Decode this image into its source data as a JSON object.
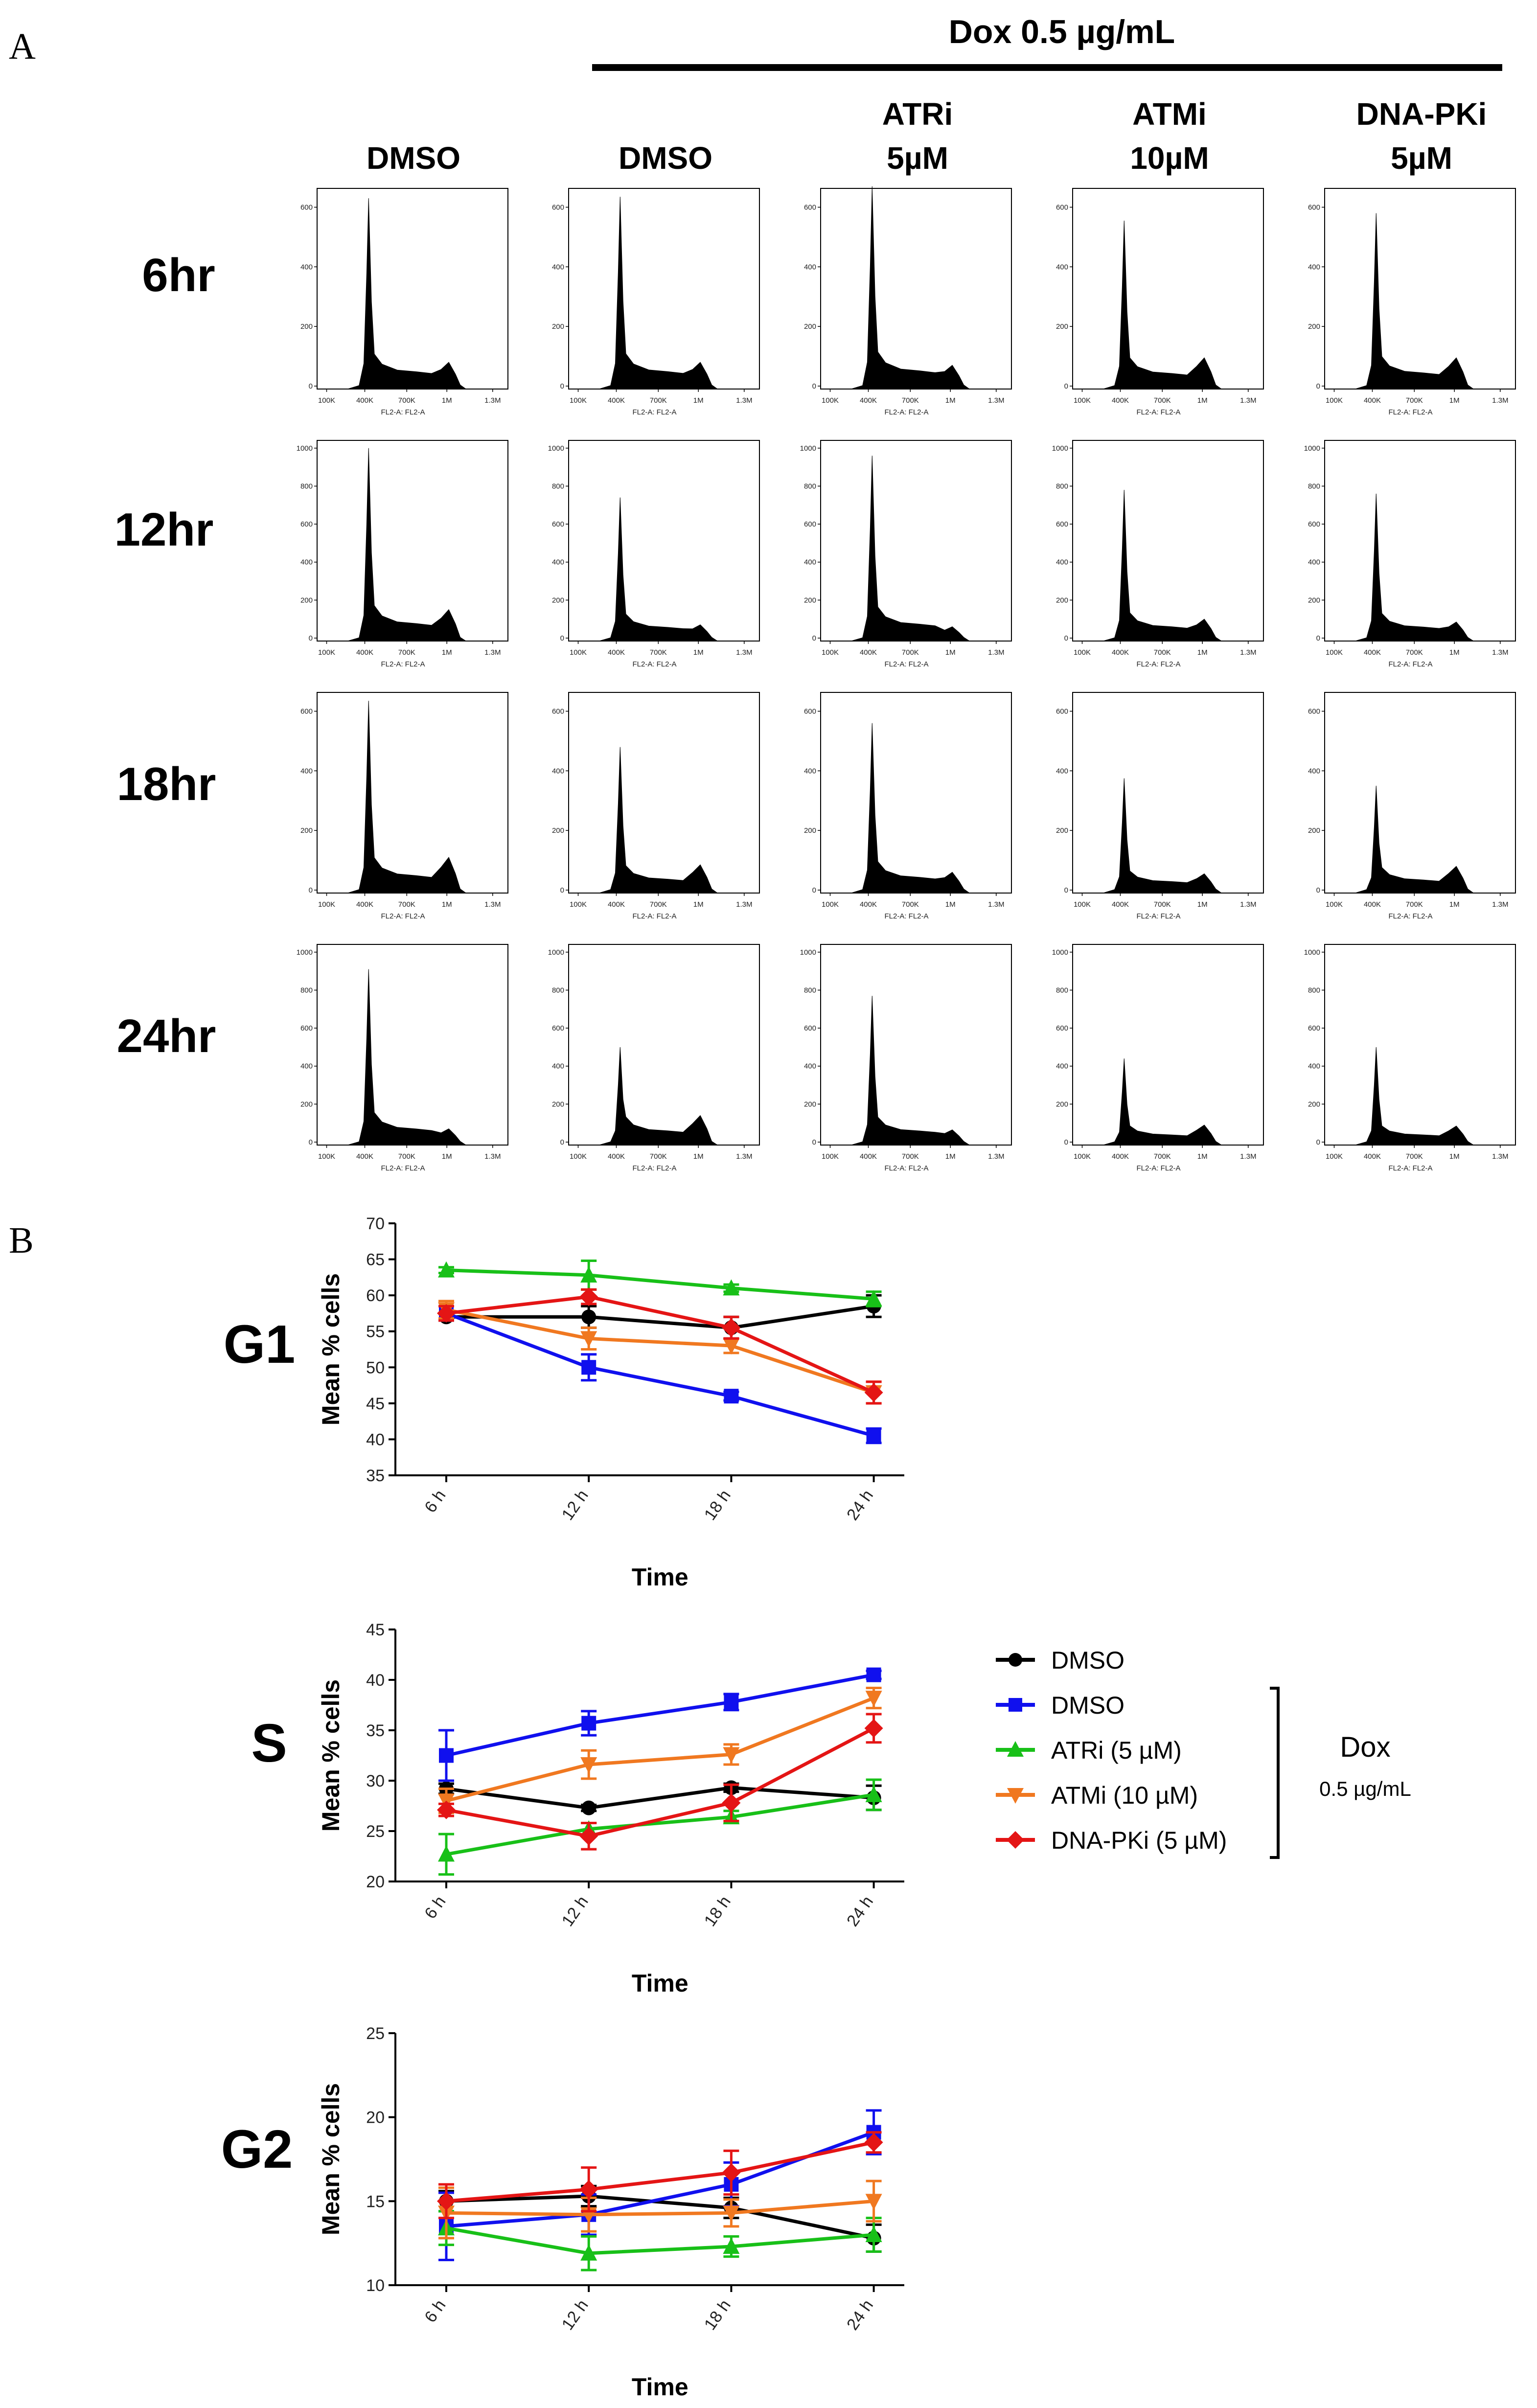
{
  "panel_labels": {
    "a": "A",
    "b": "B"
  },
  "treatment_header": "Dox 0.5 µg/mL",
  "conditions": [
    {
      "line1": "DMSO",
      "line2": ""
    },
    {
      "line1": "DMSO",
      "line2": ""
    },
    {
      "line1": "ATRi",
      "line2": "5µM"
    },
    {
      "line1": "ATMi",
      "line2": "10µM"
    },
    {
      "line1": "DNA-PKi",
      "line2": "5µM"
    }
  ],
  "timepoints": [
    "6hr",
    "12hr",
    "18hr",
    "24hr"
  ],
  "histogram": {
    "x_ticks": [
      "100K",
      "400K",
      "700K",
      "1M",
      "1.3M"
    ],
    "x_label": "FL2-A: FL2-A",
    "y_ticks_by_row": [
      [
        "0",
        "200",
        "400",
        "600"
      ],
      [
        "0",
        "200",
        "400",
        "600",
        "800",
        "1000"
      ],
      [
        "0",
        "200",
        "400",
        "600"
      ],
      [
        "0",
        "200",
        "400",
        "600",
        "800",
        "1000"
      ]
    ],
    "y_max_by_row": [
      650,
      1020,
      650,
      1020
    ],
    "g1_peak_heights": [
      [
        630,
        635,
        670,
        555,
        580
      ],
      [
        1000,
        740,
        960,
        780,
        760
      ],
      [
        635,
        480,
        560,
        375,
        350
      ],
      [
        910,
        500,
        770,
        440,
        500
      ]
    ],
    "g2_peak_heights": [
      [
        80,
        80,
        70,
        95,
        95
      ],
      [
        150,
        70,
        60,
        100,
        85
      ],
      [
        110,
        85,
        60,
        55,
        80
      ],
      [
        70,
        140,
        65,
        90,
        85
      ]
    ]
  },
  "legend": {
    "entries": [
      "DMSO",
      "DMSO",
      "ATRi (5 µM)",
      "ATMi (10 µM)",
      "DNA-PKi (5 µM)"
    ],
    "bracket_label": "Dox",
    "bracket_sublabel": "0.5 µg/mL"
  },
  "colors": {
    "DMSO_control": "#000000",
    "DMSO_dox": "#1010ee",
    "ATRi": "#18c018",
    "ATMi": "#f07820",
    "DNA-PKi": "#e41515"
  },
  "chart_data": [
    {
      "type": "line",
      "phase_label": "G1",
      "categories": [
        "6 h",
        "12 h",
        "18 h",
        "24 h"
      ],
      "xlabel": "Time",
      "ylabel": "Mean % cells",
      "ylim": [
        35,
        70
      ],
      "yticks": [
        35,
        40,
        45,
        50,
        55,
        60,
        65,
        70
      ],
      "series": [
        {
          "name": "DMSO",
          "marker": "circle",
          "values": [
            57,
            57,
            55.5,
            58.5
          ],
          "errors": [
            0.5,
            1.5,
            1.5,
            1.5
          ]
        },
        {
          "name": "DMSO",
          "marker": "square",
          "values": [
            57.5,
            50,
            46,
            40.5
          ],
          "errors": [
            1,
            1.8,
            0.6,
            1
          ]
        },
        {
          "name": "ATRi (5 µM)",
          "marker": "triangle-up",
          "values": [
            63.5,
            62.8,
            61,
            59.5
          ],
          "errors": [
            0.4,
            2,
            0.5,
            1
          ]
        },
        {
          "name": "ATMi (10 µM)",
          "marker": "triangle-down",
          "values": [
            58,
            54,
            53,
            46.5
          ],
          "errors": [
            1.2,
            1.5,
            1,
            1.5
          ]
        },
        {
          "name": "DNA-PKi (5 µM)",
          "marker": "diamond",
          "values": [
            57.5,
            59.8,
            55.5,
            46.5
          ],
          "errors": [
            1,
            1,
            1.5,
            1.5
          ]
        }
      ]
    },
    {
      "type": "line",
      "phase_label": "S",
      "categories": [
        "6 h",
        "12 h",
        "18 h",
        "24 h"
      ],
      "xlabel": "Time",
      "ylabel": "Mean % cells",
      "ylim": [
        20,
        45
      ],
      "yticks": [
        20,
        25,
        30,
        35,
        40,
        45
      ],
      "series": [
        {
          "name": "DMSO",
          "marker": "circle",
          "values": [
            29.2,
            27.3,
            29.3,
            28.3
          ],
          "errors": [
            0.5,
            0.3,
            0.4,
            1.2
          ]
        },
        {
          "name": "DMSO",
          "marker": "square",
          "values": [
            32.5,
            35.7,
            37.8,
            40.5
          ],
          "errors": [
            2.5,
            1.2,
            0.8,
            0.4
          ]
        },
        {
          "name": "ATRi (5 µM)",
          "marker": "triangle-up",
          "values": [
            22.7,
            25.2,
            26.4,
            28.6
          ],
          "errors": [
            2,
            0.6,
            0.6,
            1.5
          ]
        },
        {
          "name": "ATMi (10 µM)",
          "marker": "triangle-down",
          "values": [
            28,
            31.6,
            32.6,
            38.2
          ],
          "errors": [
            1.2,
            1.4,
            1,
            1
          ]
        },
        {
          "name": "DNA-PKi (5 µM)",
          "marker": "diamond",
          "values": [
            27.1,
            24.5,
            27.8,
            35.2
          ],
          "errors": [
            0.6,
            1.3,
            1.8,
            1.4
          ]
        }
      ]
    },
    {
      "type": "line",
      "phase_label": "G2",
      "categories": [
        "6 h",
        "12 h",
        "18 h",
        "24 h"
      ],
      "xlabel": "Time",
      "ylabel": "Mean % cells",
      "ylim": [
        10,
        25
      ],
      "yticks": [
        10,
        15,
        20,
        25
      ],
      "series": [
        {
          "name": "DMSO",
          "marker": "circle",
          "values": [
            15,
            15.3,
            14.6,
            12.8
          ],
          "errors": [
            0.6,
            0.6,
            0.6,
            0.8
          ]
        },
        {
          "name": "DMSO",
          "marker": "square",
          "values": [
            13.5,
            14.2,
            16,
            19.1
          ],
          "errors": [
            2,
            1.2,
            1.3,
            1.3
          ]
        },
        {
          "name": "ATRi (5 µM)",
          "marker": "triangle-up",
          "values": [
            13.4,
            11.9,
            12.3,
            13
          ],
          "errors": [
            1,
            1,
            0.6,
            1
          ]
        },
        {
          "name": "ATMi (10 µM)",
          "marker": "triangle-down",
          "values": [
            14.3,
            14.2,
            14.3,
            15
          ],
          "errors": [
            1.5,
            1,
            0.8,
            1.2
          ]
        },
        {
          "name": "DNA-PKi (5 µM)",
          "marker": "diamond",
          "values": [
            15,
            15.7,
            16.7,
            18.5
          ],
          "errors": [
            1,
            1.3,
            1.3,
            0.6
          ]
        }
      ]
    }
  ]
}
